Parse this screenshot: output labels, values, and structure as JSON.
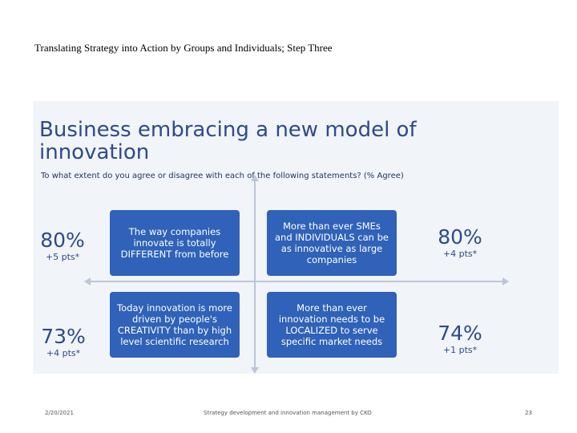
{
  "slide": {
    "title": "Translating Strategy into Action by Groups and Individuals; Step Three"
  },
  "photo": {
    "heading": "Business embracing a new model of innovation",
    "question": "To what extent do you agree or disagree with each of the following statements? (% Agree)",
    "quadrants": {
      "top_left": {
        "text": "The way companies innovate is totally DIFFERENT from before",
        "percent": "80%",
        "delta": "+5 pts*"
      },
      "top_right": {
        "text": "More than ever SMEs and INDIVIDUALS can be as innovative as large companies",
        "percent": "80%",
        "delta": "+4 pts*"
      },
      "bottom_left": {
        "text": "Today innovation is more driven by people's CREATIVITY than by high level scientific research",
        "percent": "73%",
        "delta": "+4 pts*"
      },
      "bottom_right": {
        "text": "More than ever innovation needs to be LOCALIZED to serve specific market needs",
        "percent": "74%",
        "delta": "+1 pts*"
      }
    },
    "colors": {
      "box": "#2f62b8",
      "heading": "#2e4a8a",
      "background": "#f1f4f8"
    }
  },
  "footer": {
    "date": "2/20/2021",
    "center": "Strategy development and innovation management by CKO",
    "page": "23"
  }
}
